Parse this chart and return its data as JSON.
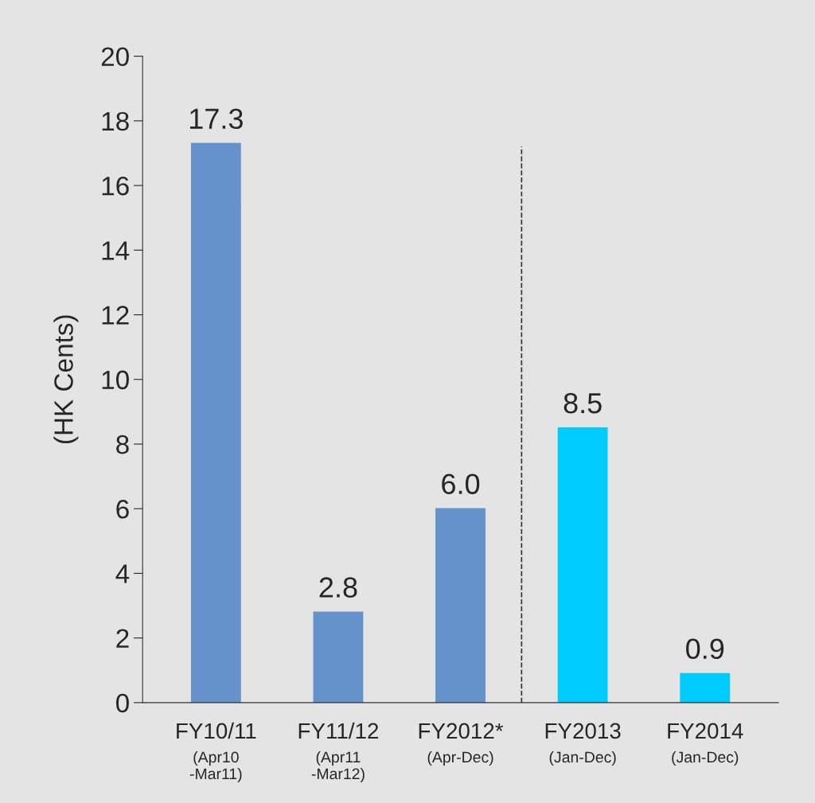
{
  "chart_data": {
    "type": "bar",
    "ylabel": "(HK Cents)",
    "categories": [
      "FY10/11\n(Apr10\n-Mar11)",
      "FY11/12\n(Apr11\n-Mar12)",
      "FY2012*\n(Apr-Dec)",
      "FY2013\n(Jan-Dec)",
      "FY2014\n(Jan-Dec)"
    ],
    "values": [
      17.3,
      2.8,
      6.0,
      8.5,
      0.9
    ],
    "value_labels": [
      "17.3",
      "2.8",
      "6.0",
      "8.5",
      "0.9"
    ],
    "colors": [
      "#6692cc",
      "#6692cc",
      "#6692cc",
      "#00ccff",
      "#00ccff"
    ],
    "ylim": [
      0,
      20
    ],
    "yticks": [
      0,
      2,
      4,
      6,
      8,
      10,
      12,
      14,
      16,
      18,
      20
    ]
  }
}
